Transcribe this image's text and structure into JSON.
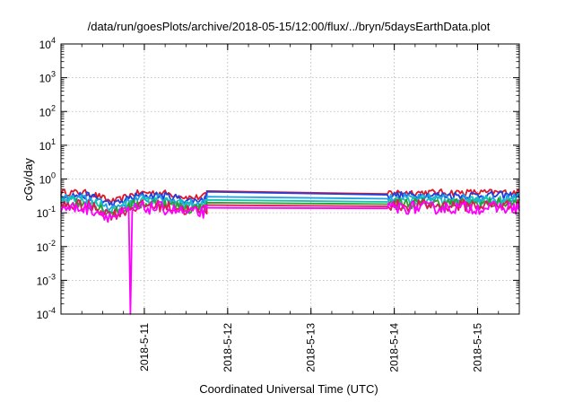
{
  "chart_data": {
    "type": "line",
    "title": "/data/run/goesPlots/archive/2018-05-15/12:00/flux/../bryn/5daysEarthData.plot",
    "xlabel": "Coordinated Universal Time (UTC)",
    "ylabel": "cGy/day",
    "y_scale": "log",
    "ylim_exponents": [
      -4,
      4
    ],
    "xlim": [
      "2018-05-10T00:00",
      "2018-05-15T12:00"
    ],
    "x_ticks": [
      "2018-5-11",
      "2018-5-12",
      "2018-5-13",
      "2018-5-14",
      "2018-5-15"
    ],
    "y_tick_base": "10",
    "y_tick_exponents": [
      "-4",
      "-3",
      "-2",
      "-1",
      "0",
      "1",
      "2",
      "3",
      "4"
    ],
    "grid": true,
    "legend": "none",
    "data_gap": [
      "2018-05-11T18:00",
      "2018-05-13T22:00"
    ],
    "series": [
      {
        "color": "#e0172b",
        "baseline": 0.4,
        "values_at_gap": [
          0.44,
          0.36
        ]
      },
      {
        "color": "#1f3fdc",
        "baseline": 0.33,
        "values_at_gap": [
          0.42,
          0.34
        ]
      },
      {
        "color": "#1fa0e6",
        "baseline": 0.27,
        "values_at_gap": [
          0.3,
          0.26
        ]
      },
      {
        "color": "#17c4b4",
        "baseline": 0.22,
        "values_at_gap": [
          0.24,
          0.21
        ]
      },
      {
        "color": "#2ca02c",
        "baseline": 0.19,
        "values_at_gap": [
          0.2,
          0.18
        ]
      },
      {
        "color": "#e0175a",
        "baseline": 0.165,
        "values_at_gap": [
          0.17,
          0.155
        ]
      },
      {
        "color": "#ff00ff",
        "baseline": 0.14,
        "values_at_gap": [
          0.14,
          0.135
        ],
        "dropout": "2018-05-10T20:00"
      }
    ]
  }
}
